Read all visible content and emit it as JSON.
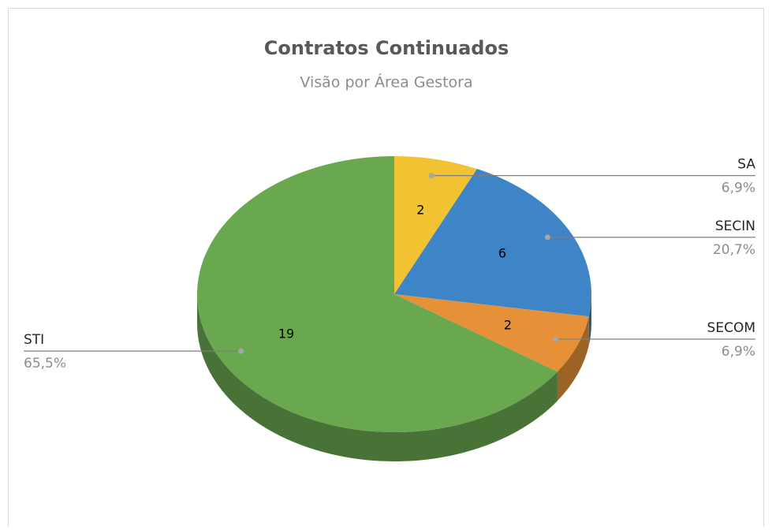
{
  "chart_data": {
    "type": "pie3d",
    "title": "Contratos Continuados",
    "subtitle": "Visão por Área Gestora",
    "categories": [
      "SA",
      "SECIN",
      "SECOM",
      "STI"
    ],
    "values": [
      2,
      6,
      2,
      19
    ],
    "percentages": [
      6.9,
      20.7,
      6.9,
      65.5
    ],
    "percentage_labels": [
      "6,9%",
      "20,7%",
      "6,9%",
      "65,5%"
    ],
    "colors": [
      "#f1c232",
      "#3d85c6",
      "#e69138",
      "#6aa84f"
    ]
  }
}
